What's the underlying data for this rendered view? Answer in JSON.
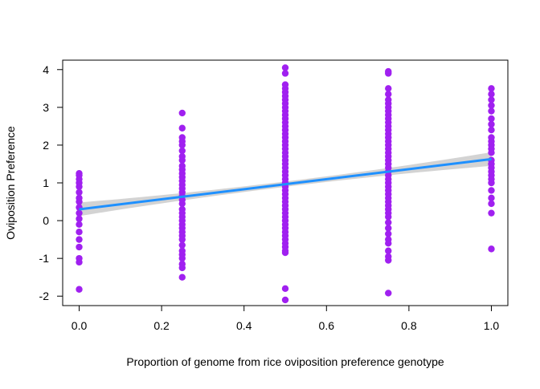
{
  "chart_data": {
    "type": "scatter",
    "xlabel": "Proportion of genome from rice oviposition preference genotype",
    "ylabel": "Oviposition Preference",
    "xlim": [
      -0.04,
      1.04
    ],
    "ylim": [
      -2.25,
      4.25
    ],
    "x_ticks": [
      "0.0",
      "0.2",
      "0.4",
      "0.6",
      "0.8",
      "1.0"
    ],
    "x_tick_values": [
      0,
      0.2,
      0.4,
      0.6,
      0.8,
      1.0
    ],
    "y_ticks": [
      "-2",
      "-1",
      "0",
      "1",
      "2",
      "3",
      "4"
    ],
    "y_tick_values": [
      -2,
      -1,
      0,
      1,
      2,
      3,
      4
    ],
    "grid": false,
    "point_color": "#A020F0",
    "line_color": "#1E90FF",
    "band_color": "#D3D3D3",
    "points": [
      {
        "x": 0,
        "ys": [
          -1.82,
          -1.1,
          -1.0,
          -0.7,
          -0.5,
          -0.3,
          -0.1,
          0.05,
          0.2,
          0.35,
          0.5,
          0.6,
          0.75,
          0.9,
          1.0,
          1.1,
          1.2,
          1.25
        ]
      },
      {
        "x": 0.25,
        "ys": [
          -1.5,
          -1.25,
          -1.15,
          -1.0,
          -0.9,
          -0.8,
          -0.65,
          -0.5,
          -0.4,
          -0.3,
          -0.2,
          -0.1,
          0.0,
          0.1,
          0.2,
          0.3,
          0.45,
          0.55,
          0.65,
          0.75,
          0.85,
          0.95,
          1.05,
          1.15,
          1.25,
          1.35,
          1.45,
          1.6,
          1.7,
          1.85,
          2.0,
          2.1,
          2.2,
          2.45,
          2.85
        ]
      },
      {
        "x": 0.5,
        "ys": [
          -2.1,
          -1.8,
          -0.85,
          -0.8,
          -0.7,
          -0.6,
          -0.5,
          -0.4,
          -0.3,
          -0.2,
          -0.1,
          0.0,
          0.1,
          0.2,
          0.3,
          0.4,
          0.5,
          0.6,
          0.7,
          0.8,
          0.9,
          1.0,
          1.1,
          1.2,
          1.3,
          1.4,
          1.5,
          1.6,
          1.7,
          1.8,
          1.9,
          2.0,
          2.1,
          2.2,
          2.3,
          2.4,
          2.5,
          2.6,
          2.7,
          2.8,
          2.9,
          3.0,
          3.1,
          3.2,
          3.3,
          3.4,
          3.5,
          3.6,
          3.9,
          4.05
        ]
      },
      {
        "x": 0.75,
        "ys": [
          -1.92,
          -1.05,
          -0.95,
          -0.8,
          -0.6,
          -0.5,
          -0.35,
          -0.2,
          -0.05,
          0.1,
          0.2,
          0.3,
          0.4,
          0.5,
          0.6,
          0.7,
          0.8,
          0.9,
          1.0,
          1.1,
          1.2,
          1.3,
          1.4,
          1.5,
          1.6,
          1.7,
          1.8,
          1.9,
          2.0,
          2.1,
          2.2,
          2.3,
          2.4,
          2.5,
          2.6,
          2.7,
          2.8,
          2.9,
          3.0,
          3.1,
          3.2,
          3.35,
          3.5,
          3.9,
          3.95
        ]
      },
      {
        "x": 1.0,
        "ys": [
          -0.75,
          0.2,
          0.45,
          0.6,
          0.8,
          1.0,
          1.1,
          1.2,
          1.3,
          1.4,
          1.5,
          1.6,
          1.8,
          1.9,
          2.0,
          2.1,
          2.2,
          2.4,
          2.55,
          2.7,
          2.9,
          3.05,
          3.2,
          3.35,
          3.5
        ]
      }
    ],
    "fit": {
      "intercept": 0.3,
      "slope": 1.33,
      "band_halfwidth_at_ends": 0.18,
      "band_halfwidth_at_center": 0.07,
      "x_range": [
        0,
        1
      ]
    }
  }
}
